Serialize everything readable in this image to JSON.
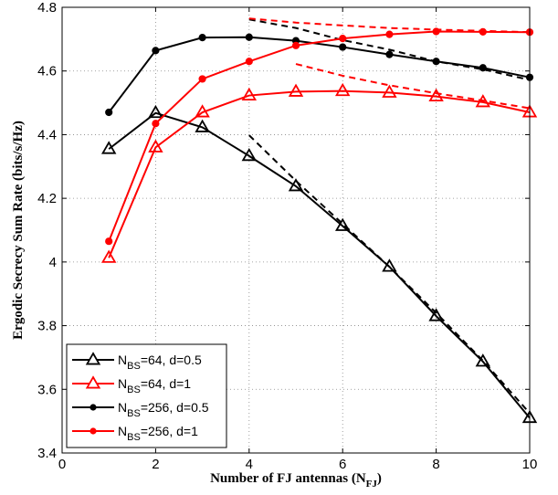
{
  "chart_data": {
    "type": "line",
    "xlabel": "Number of FJ antennas (N",
    "xlabel_sub": "FJ",
    "xlabel_end": ")",
    "ylabel": "Ergodic Secrecy Sum Rate (bits/s/Hz)",
    "xlim": [
      0,
      10
    ],
    "ylim": [
      3.4,
      4.8
    ],
    "xticks": [
      0,
      2,
      4,
      6,
      8,
      10
    ],
    "yticks": [
      3.4,
      3.6,
      3.8,
      4,
      4.2,
      4.4,
      4.6,
      4.8
    ],
    "ytick_labels": [
      "3.4",
      "3.6",
      "3.8",
      "4",
      "4.2",
      "4.4",
      "4.6",
      "4.8"
    ],
    "grid": true,
    "legend_position": "bottom-left",
    "series": [
      {
        "legend_prefix": "N",
        "legend_sub": "BS",
        "legend_suffix": "=64, d=0.5",
        "color": "#000000",
        "marker": "triangle",
        "x": [
          1,
          2,
          3,
          4,
          5,
          6,
          7,
          8,
          9,
          10
        ],
        "values": [
          4.355,
          4.468,
          4.423,
          4.333,
          4.238,
          4.113,
          3.985,
          3.83,
          3.687,
          3.51
        ]
      },
      {
        "legend_prefix": "N",
        "legend_sub": "BS",
        "legend_suffix": "=64, d=1",
        "color": "#ff0000",
        "marker": "triangle",
        "x": [
          1,
          2,
          3,
          4,
          5,
          6,
          7,
          8,
          9,
          10
        ],
        "values": [
          4.013,
          4.36,
          4.47,
          4.523,
          4.535,
          4.537,
          4.532,
          4.52,
          4.502,
          4.47
        ]
      },
      {
        "legend_prefix": "N",
        "legend_sub": "BS",
        "legend_suffix": "=256, d=0.5",
        "color": "#000000",
        "marker": "dot",
        "x": [
          1,
          2,
          3,
          4,
          5,
          6,
          7,
          8,
          9,
          10
        ],
        "values": [
          4.47,
          4.664,
          4.705,
          4.706,
          4.695,
          4.675,
          4.652,
          4.63,
          4.61,
          4.58
        ]
      },
      {
        "legend_prefix": "N",
        "legend_sub": "BS",
        "legend_suffix": "=256, d=1",
        "color": "#ff0000",
        "marker": "dot",
        "x": [
          1,
          2,
          3,
          4,
          5,
          6,
          7,
          8,
          9,
          10
        ],
        "values": [
          4.065,
          4.435,
          4.575,
          4.63,
          4.68,
          4.702,
          4.715,
          4.724,
          4.723,
          4.722
        ]
      }
    ],
    "dashed_lines": [
      {
        "color": "#000000",
        "x": [
          4,
          5,
          6,
          7,
          8,
          9,
          10
        ],
        "values": [
          4.398,
          4.255,
          4.12,
          3.985,
          3.84,
          3.69,
          3.525
        ]
      },
      {
        "color": "#ff0000",
        "x": [
          5,
          6,
          7,
          8,
          9,
          10
        ],
        "values": [
          4.622,
          4.585,
          4.555,
          4.53,
          4.507,
          4.483
        ]
      },
      {
        "color": "#000000",
        "x": [
          4,
          5,
          6,
          7,
          8,
          9,
          10
        ],
        "values": [
          4.762,
          4.735,
          4.697,
          4.667,
          4.63,
          4.605,
          4.572
        ]
      },
      {
        "color": "#ff0000",
        "x": [
          4,
          5,
          6,
          7,
          8,
          9,
          10
        ],
        "values": [
          4.765,
          4.752,
          4.743,
          4.735,
          4.73,
          4.726,
          4.722
        ]
      }
    ]
  }
}
